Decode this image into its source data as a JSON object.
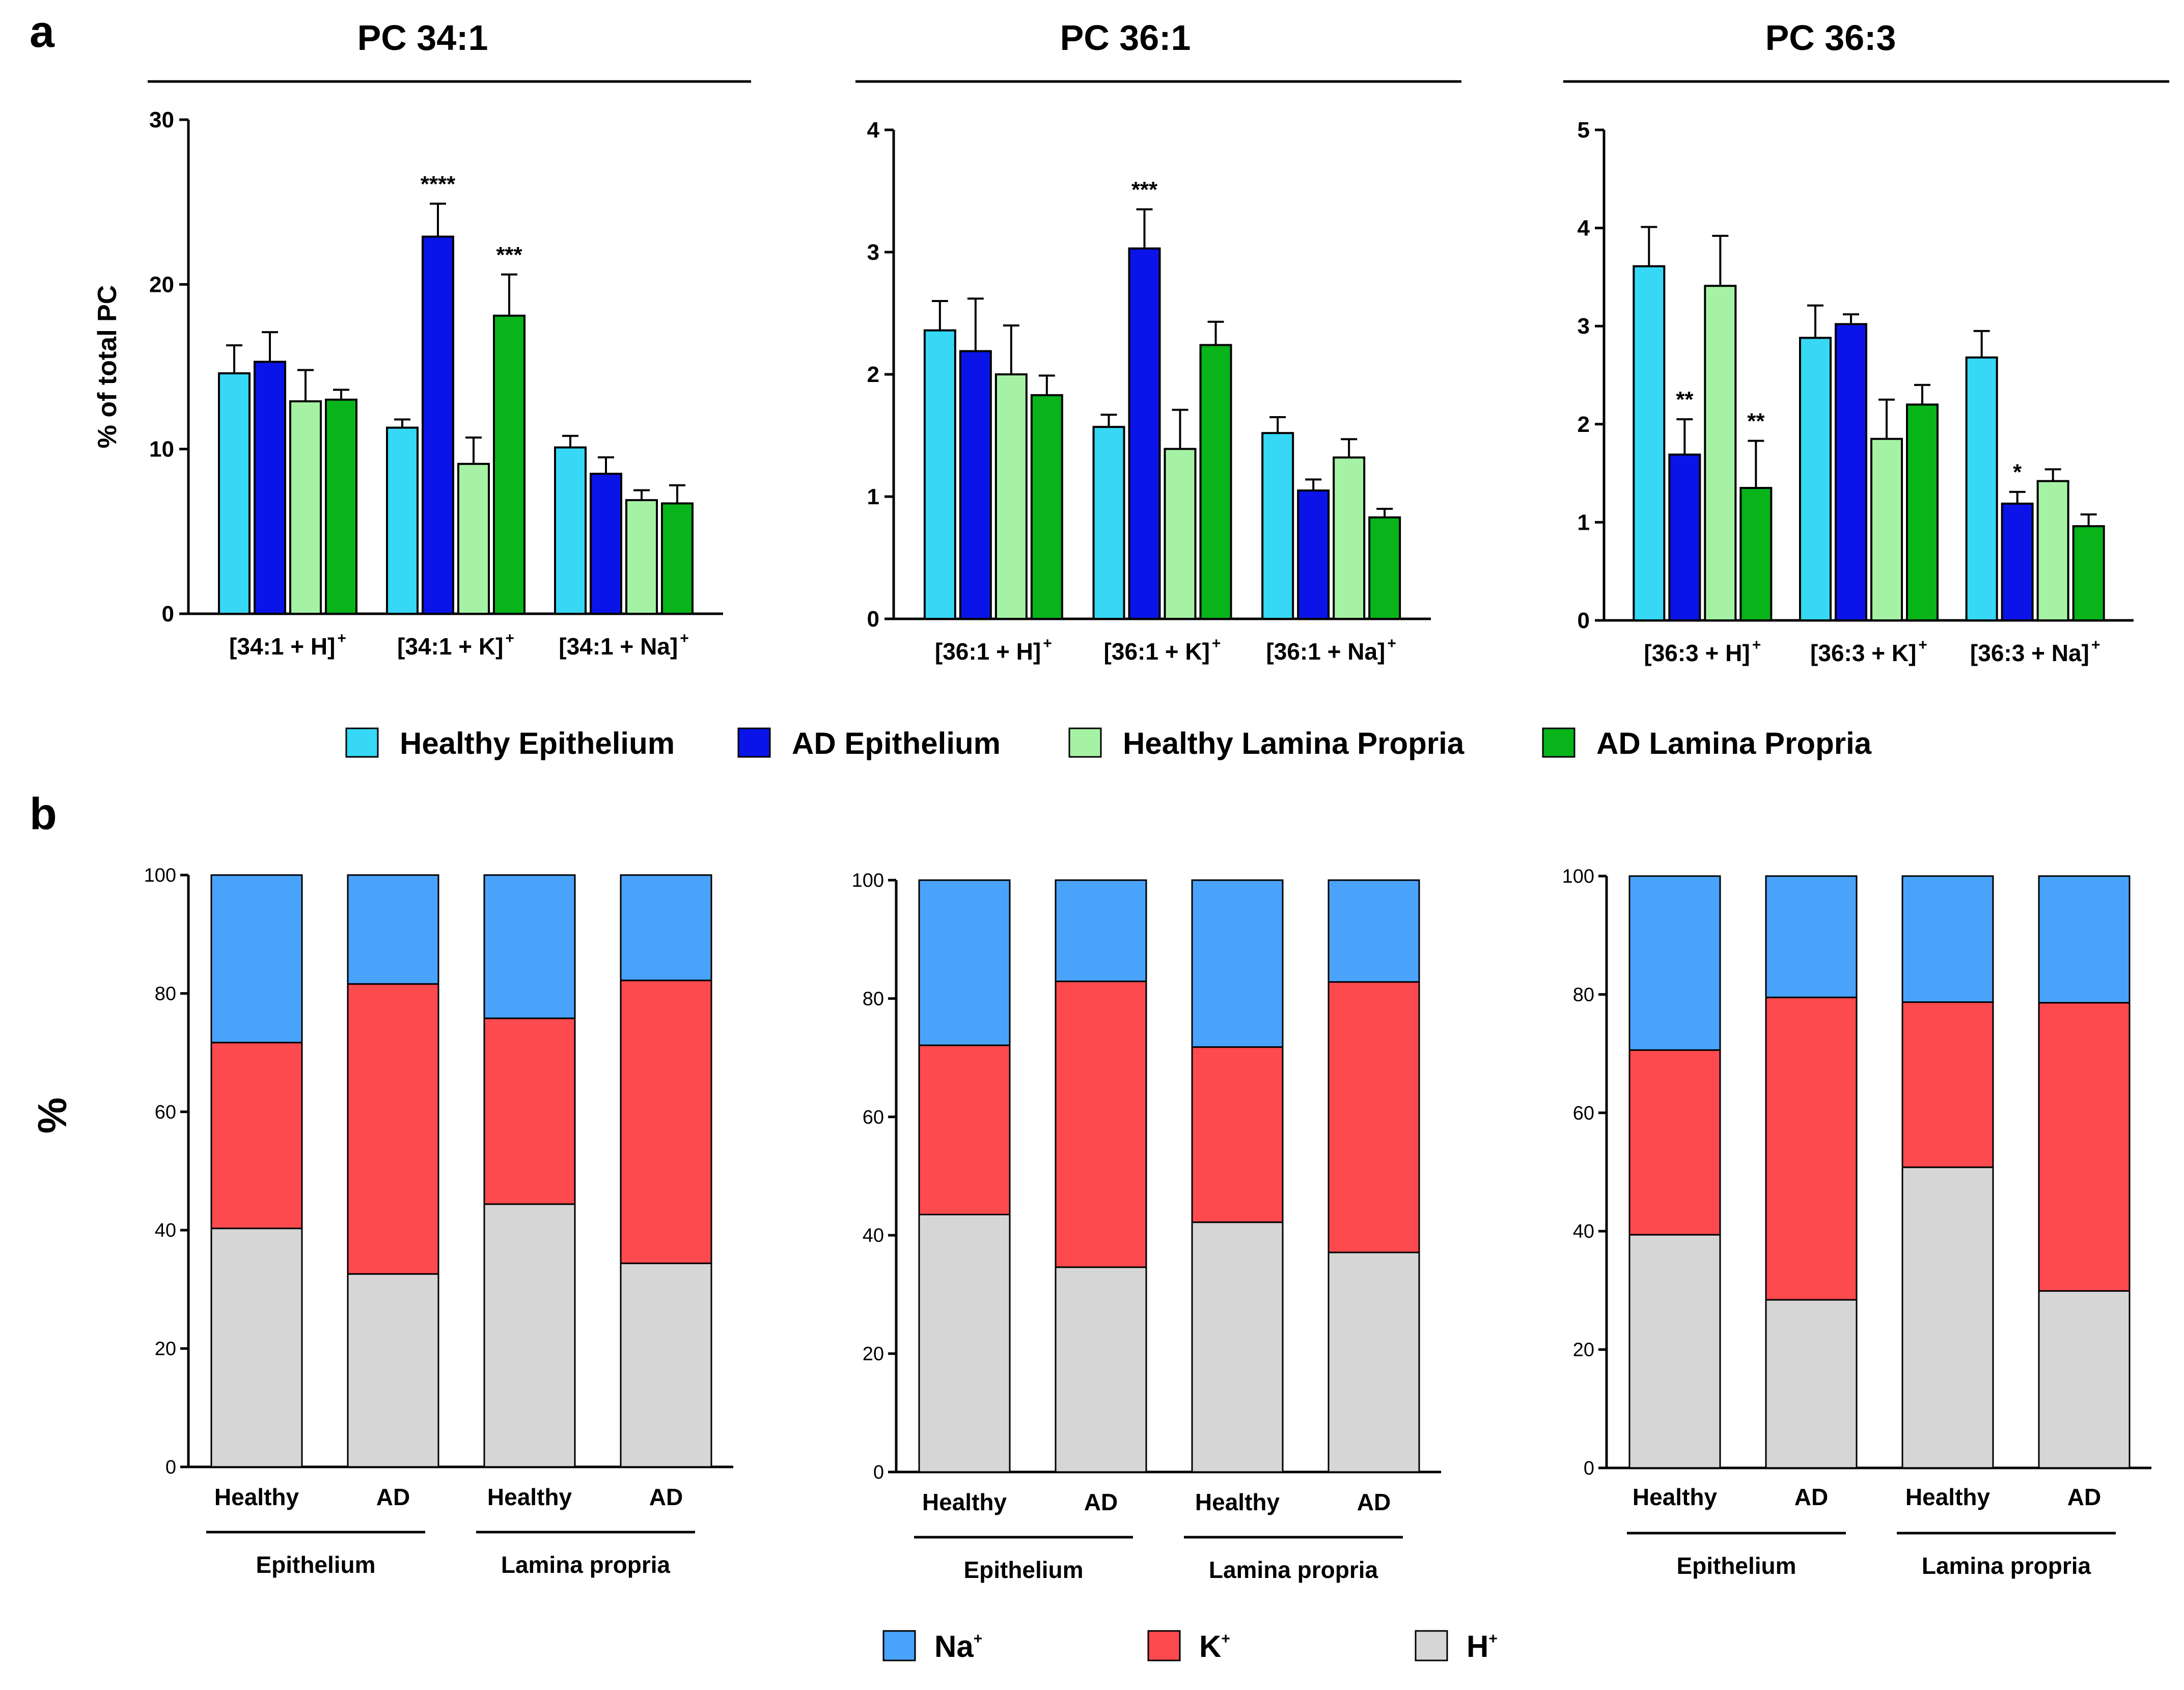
{
  "panel_labels": {
    "a": "a",
    "b": "b"
  },
  "colors": {
    "Healthy Epithelium": "#36d8f5",
    "AD Epithelium": "#0a14e8",
    "Healthy Lamina Propria": "#a6f2a4",
    "AD Lamina Propria": "#07b41a",
    "Na+": "#4aa3fb",
    "K+": "#fd4a4f",
    "H+": "#d6d6d6"
  },
  "legend_a": [
    {
      "label": "Healthy Epithelium",
      "key": "Healthy Epithelium"
    },
    {
      "label": "AD Epithelium",
      "key": "AD Epithelium"
    },
    {
      "label": "Healthy Lamina Propria",
      "key": "Healthy Lamina Propria"
    },
    {
      "label": "AD Lamina Propria",
      "key": "AD Lamina Propria"
    }
  ],
  "legend_b": [
    {
      "label": "Na",
      "sup": "+",
      "key": "Na+"
    },
    {
      "label": "K",
      "sup": "+",
      "key": "K+"
    },
    {
      "label": "H",
      "sup": "+",
      "key": "H+"
    }
  ],
  "y_label_a": "% of total PC",
  "y_label_b": "%",
  "chart_data": [
    {
      "panel": "a",
      "type": "bar",
      "title": "PC 34:1",
      "ylabel": "% of total PC",
      "ylim": [
        0,
        30
      ],
      "yticks": [
        "0",
        "10",
        "20",
        "30"
      ],
      "ytick_values": [
        0,
        10,
        20,
        30
      ],
      "categories": [
        {
          "base": "[34:1 + H]",
          "sup": "+"
        },
        {
          "base": "[34:1 + K]",
          "sup": "+"
        },
        {
          "base": "[34:1 + Na]",
          "sup": "+"
        }
      ],
      "series": [
        {
          "name": "Healthy Epithelium",
          "values": [
            14.6,
            11.3,
            10.1
          ],
          "errors": [
            1.7,
            0.5,
            0.7
          ]
        },
        {
          "name": "AD Epithelium",
          "values": [
            15.3,
            22.9,
            8.5
          ],
          "errors": [
            1.8,
            2.0,
            1.0
          ]
        },
        {
          "name": "Healthy Lamina Propria",
          "values": [
            12.9,
            9.1,
            6.9
          ],
          "errors": [
            1.9,
            1.6,
            0.6
          ]
        },
        {
          "name": "AD Lamina Propria",
          "values": [
            13.0,
            18.1,
            6.7
          ],
          "errors": [
            0.6,
            2.5,
            1.1
          ]
        }
      ],
      "annotations": [
        {
          "category": 1,
          "series": 1,
          "text": "****"
        },
        {
          "category": 1,
          "series": 3,
          "text": "***"
        }
      ]
    },
    {
      "panel": "a",
      "type": "bar",
      "title": "PC 36:1",
      "ylabel": "% of total PC",
      "ylim": [
        0,
        4
      ],
      "yticks": [
        "0",
        "1",
        "2",
        "3",
        "4"
      ],
      "ytick_values": [
        0,
        1,
        2,
        3,
        4
      ],
      "categories": [
        {
          "base": "[36:1 + H]",
          "sup": "+"
        },
        {
          "base": "[36:1 + K]",
          "sup": "+"
        },
        {
          "base": "[36:1 + Na]",
          "sup": "+"
        }
      ],
      "series": [
        {
          "name": "Healthy Epithelium",
          "values": [
            2.36,
            1.57,
            1.52
          ],
          "errors": [
            0.24,
            0.1,
            0.13
          ]
        },
        {
          "name": "AD Epithelium",
          "values": [
            2.19,
            3.03,
            1.05
          ],
          "errors": [
            0.43,
            0.32,
            0.09
          ]
        },
        {
          "name": "Healthy Lamina Propria",
          "values": [
            2.0,
            1.39,
            1.32
          ],
          "errors": [
            0.4,
            0.32,
            0.15
          ]
        },
        {
          "name": "AD Lamina Propria",
          "values": [
            1.83,
            2.24,
            0.83
          ],
          "errors": [
            0.16,
            0.19,
            0.07
          ]
        }
      ],
      "annotations": [
        {
          "category": 1,
          "series": 1,
          "text": "***"
        }
      ]
    },
    {
      "panel": "a",
      "type": "bar",
      "title": "PC 36:3",
      "ylabel": "% of total PC",
      "ylim": [
        0,
        5
      ],
      "yticks": [
        "0",
        "1",
        "2",
        "3",
        "4",
        "5"
      ],
      "ytick_values": [
        0,
        1,
        2,
        3,
        4,
        5
      ],
      "categories": [
        {
          "base": "[36:3 + H]",
          "sup": "+"
        },
        {
          "base": "[36:3 + K]",
          "sup": "+"
        },
        {
          "base": "[36:3 + Na]",
          "sup": "+"
        }
      ],
      "series": [
        {
          "name": "Healthy Epithelium",
          "values": [
            3.61,
            2.88,
            2.68
          ],
          "errors": [
            0.4,
            0.33,
            0.27
          ]
        },
        {
          "name": "AD Epithelium",
          "values": [
            1.69,
            3.02,
            1.19
          ],
          "errors": [
            0.36,
            0.1,
            0.12
          ]
        },
        {
          "name": "Healthy Lamina Propria",
          "values": [
            3.41,
            1.85,
            1.42
          ],
          "errors": [
            0.51,
            0.4,
            0.12
          ]
        },
        {
          "name": "AD Lamina Propria",
          "values": [
            1.35,
            2.2,
            0.96
          ],
          "errors": [
            0.48,
            0.2,
            0.12
          ]
        }
      ],
      "annotations": [
        {
          "category": 0,
          "series": 1,
          "text": "**"
        },
        {
          "category": 0,
          "series": 3,
          "text": "**"
        },
        {
          "category": 2,
          "series": 1,
          "text": "*"
        }
      ]
    },
    {
      "panel": "b",
      "type": "bar",
      "stacked": true,
      "source": "PC 34:1",
      "ylabel": "%",
      "ylim": [
        0,
        100
      ],
      "yticks": [
        "0",
        "20",
        "40",
        "60",
        "80",
        "100"
      ],
      "ytick_values": [
        0,
        20,
        40,
        60,
        80,
        100
      ],
      "categories": [
        "Healthy",
        "AD",
        "Healthy",
        "AD"
      ],
      "groups": [
        "Epithelium",
        "Lamina propria"
      ],
      "series": [
        {
          "name": "H+",
          "values": [
            40.3,
            32.6,
            44.4,
            34.4
          ]
        },
        {
          "name": "K+",
          "values": [
            31.4,
            49.0,
            31.4,
            47.8
          ]
        },
        {
          "name": "Na+",
          "values": [
            28.3,
            18.4,
            24.2,
            17.8
          ]
        }
      ]
    },
    {
      "panel": "b",
      "type": "bar",
      "stacked": true,
      "source": "PC 36:1",
      "ylabel": "%",
      "ylim": [
        0,
        100
      ],
      "yticks": [
        "0",
        "20",
        "40",
        "60",
        "80",
        "100"
      ],
      "ytick_values": [
        0,
        20,
        40,
        60,
        80,
        100
      ],
      "categories": [
        "Healthy",
        "AD",
        "Healthy",
        "AD"
      ],
      "groups": [
        "Epithelium",
        "Lamina propria"
      ],
      "series": [
        {
          "name": "H+",
          "values": [
            43.5,
            34.6,
            42.2,
            37.1
          ]
        },
        {
          "name": "K+",
          "values": [
            28.6,
            48.3,
            29.6,
            45.7
          ]
        },
        {
          "name": "Na+",
          "values": [
            27.9,
            17.1,
            28.2,
            17.2
          ]
        }
      ]
    },
    {
      "panel": "b",
      "type": "bar",
      "stacked": true,
      "source": "PC 36:3",
      "ylabel": "%",
      "ylim": [
        0,
        100
      ],
      "yticks": [
        "0",
        "20",
        "40",
        "60",
        "80",
        "100"
      ],
      "ytick_values": [
        0,
        20,
        40,
        60,
        80,
        100
      ],
      "categories": [
        "Healthy",
        "AD",
        "Healthy",
        "AD"
      ],
      "groups": [
        "Epithelium",
        "Lamina propria"
      ],
      "series": [
        {
          "name": "H+",
          "values": [
            39.4,
            28.4,
            50.8,
            29.9
          ]
        },
        {
          "name": "K+",
          "values": [
            31.2,
            51.1,
            27.9,
            48.7
          ]
        },
        {
          "name": "Na+",
          "values": [
            29.4,
            20.5,
            21.3,
            21.4
          ]
        }
      ]
    }
  ]
}
